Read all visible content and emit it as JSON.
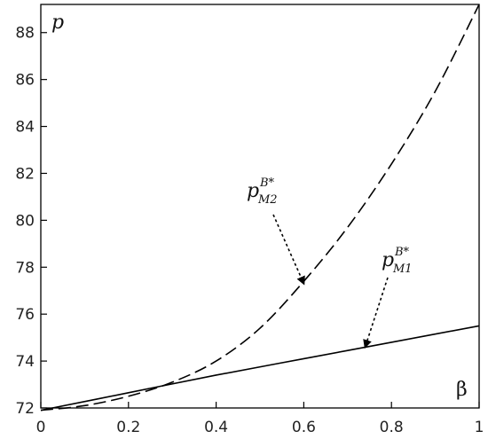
{
  "chart_data": {
    "type": "line",
    "xlabel": "β",
    "ylabel": "p",
    "xlim": [
      0,
      1
    ],
    "ylim": [
      72,
      89.2
    ],
    "xticks": [
      0,
      0.2,
      0.4,
      0.6,
      0.8,
      1
    ],
    "xtick_labels": [
      "0",
      "0.2",
      "0.4",
      "0.6",
      "0.8",
      "1"
    ],
    "yticks": [
      72,
      74,
      76,
      78,
      80,
      82,
      84,
      86,
      88
    ],
    "ytick_labels": [
      "72",
      "74",
      "76",
      "78",
      "80",
      "82",
      "84",
      "86",
      "88"
    ],
    "grid": false,
    "legend": "none",
    "series": [
      {
        "name": "p_M1^{B*}",
        "style": "solid",
        "color": "#000000",
        "x": [
          0,
          0.2,
          0.4,
          0.6,
          0.8,
          1
        ],
        "y": [
          71.9,
          72.65,
          73.4,
          74.1,
          74.8,
          75.5
        ]
      },
      {
        "name": "p_M2^{B*}",
        "style": "dashed",
        "color": "#000000",
        "x": [
          0,
          0.1,
          0.2,
          0.3,
          0.4,
          0.5,
          0.6,
          0.7,
          0.8,
          0.9,
          1
        ],
        "y": [
          71.9,
          72.1,
          72.5,
          73.1,
          74.0,
          75.4,
          77.4,
          79.7,
          82.4,
          85.5,
          89.2
        ]
      }
    ],
    "annotations": [
      {
        "main": "p",
        "sub": "M2",
        "sup": "B*",
        "arrow_to": [
          0.6,
          77.3
        ]
      },
      {
        "main": "p",
        "sub": "M1",
        "sup": "B*",
        "arrow_to": [
          0.74,
          74.6
        ]
      }
    ]
  }
}
